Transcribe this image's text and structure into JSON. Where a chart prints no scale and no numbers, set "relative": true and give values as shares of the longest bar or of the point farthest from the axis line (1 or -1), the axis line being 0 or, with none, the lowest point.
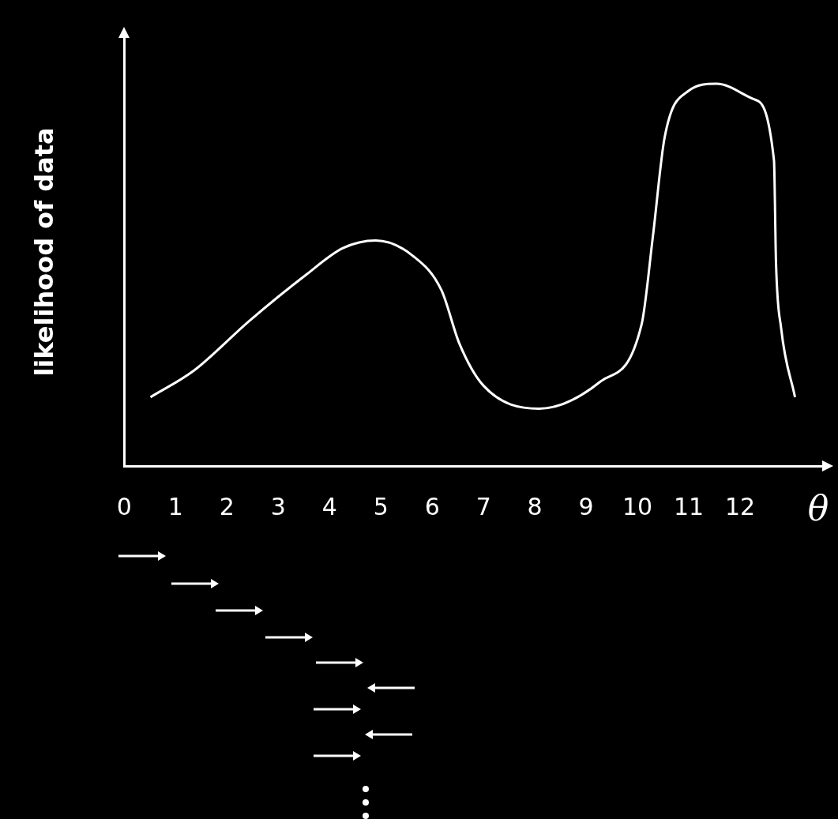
{
  "chart_data": {
    "type": "line",
    "xlabel": "θ",
    "ylabel": "likelihood of data",
    "relative": true,
    "x": [
      0.51,
      1.36,
      2.44,
      3.54,
      4.26,
      4.9,
      5.62,
      6.18,
      6.53,
      7.0,
      8.08,
      9.27,
      10.08,
      10.3,
      10.53,
      10.98,
      11.54,
      12.26,
      12.66,
      12.7,
      12.8,
      13.07
    ],
    "series": [
      {
        "color": "#ffffff",
        "values": [
          0.18,
          0.25,
          0.38,
          0.5,
          0.57,
          0.59,
          0.55,
          0.46,
          0.32,
          0.21,
          0.15,
          0.22,
          0.37,
          0.6,
          0.86,
          0.98,
          1,
          0.96,
          0.8,
          0.53,
          0.36,
          0.18
        ]
      }
    ],
    "xlim": [
      0,
      13.6
    ],
    "xticks": [
      0,
      1,
      2,
      3,
      4,
      5,
      6,
      7,
      8,
      9,
      10,
      11,
      12
    ],
    "marker": "none",
    "line_style": "solid"
  }
}
